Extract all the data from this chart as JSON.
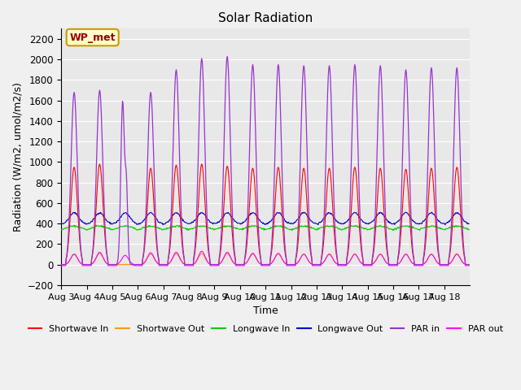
{
  "title": "Solar Radiation",
  "xlabel": "Time",
  "ylabel": "Radiation (W/m2, umol/m2/s)",
  "ylim": [
    -200,
    2300
  ],
  "yticks": [
    -200,
    0,
    200,
    400,
    600,
    800,
    1000,
    1200,
    1400,
    1600,
    1800,
    2000,
    2200
  ],
  "xticklabels": [
    "Aug 3",
    "Aug 4",
    "Aug 5",
    "Aug 6",
    "Aug 7",
    "Aug 8",
    "Aug 9",
    "Aug 10",
    "Aug 11",
    "Aug 12",
    "Aug 13",
    "Aug 14",
    "Aug 15",
    "Aug 16",
    "Aug 17",
    "Aug 18"
  ],
  "annotation_text": "WP_met",
  "annotation_bg": "#ffffcc",
  "annotation_border": "#cc9900",
  "annotation_text_color": "#990000",
  "colors": {
    "shortwave_in": "#ff0000",
    "shortwave_out": "#ff9900",
    "longwave_in": "#00cc00",
    "longwave_out": "#0000cc",
    "par_in": "#9933cc",
    "par_out": "#ff00ff"
  },
  "legend_labels": [
    "Shortwave In",
    "Shortwave Out",
    "Longwave In",
    "Longwave Out",
    "PAR in",
    "PAR out"
  ],
  "plot_bg": "#e8e8e8",
  "fig_bg": "#f0f0f0",
  "days": 16,
  "dt_hours": 0.5
}
